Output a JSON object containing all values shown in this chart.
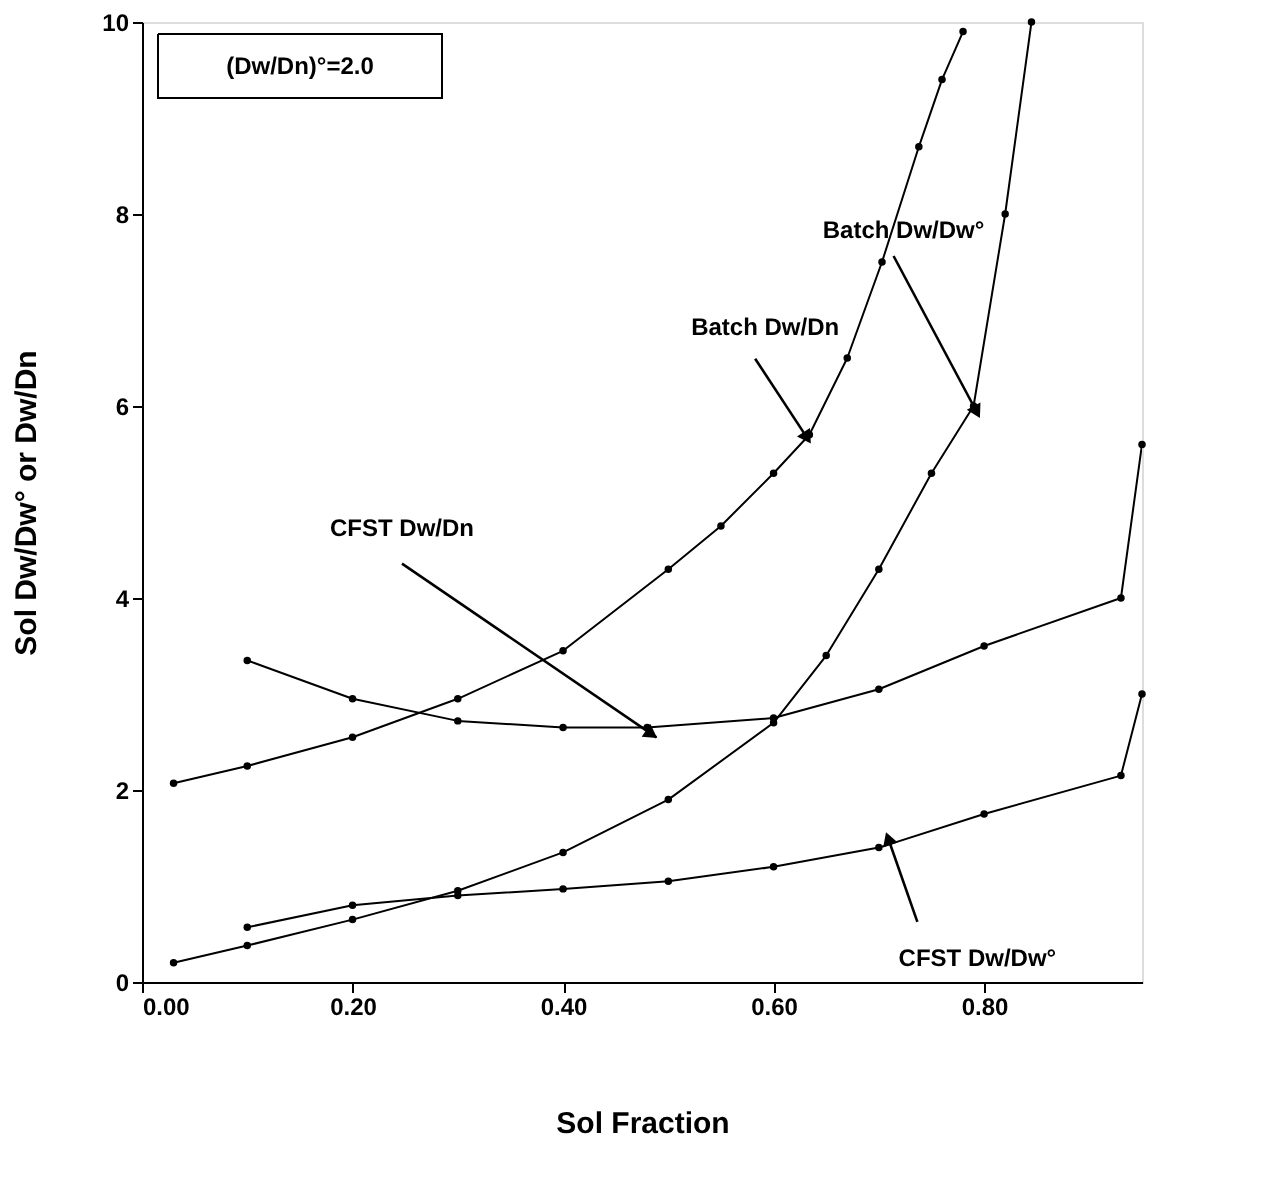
{
  "chart_data": {
    "type": "line",
    "xlabel": "Sol Fraction",
    "ylabel": "Sol Dw/Dw° or Dw/Dn",
    "xlim": [
      0,
      0.95
    ],
    "ylim": [
      0,
      10
    ],
    "xticks": [
      {
        "value": 0,
        "label": "0.00"
      },
      {
        "value": 0.2,
        "label": "0.20"
      },
      {
        "value": 0.4,
        "label": "0.40"
      },
      {
        "value": 0.6,
        "label": "0.60"
      },
      {
        "value": 0.8,
        "label": "0.80"
      }
    ],
    "yticks": [
      0,
      2,
      4,
      6,
      8,
      10
    ],
    "grid": false,
    "marker": "circle",
    "line_style": "solid",
    "series": [
      {
        "color": "#000000",
        "x": [
          0.03,
          0.1,
          0.2,
          0.3,
          0.4,
          0.5,
          0.55,
          0.6,
          0.634,
          0.67,
          0.703,
          0.738,
          0.76,
          0.78
        ],
        "values": [
          2.07,
          2.25,
          2.55,
          2.95,
          3.45,
          4.3,
          4.75,
          5.3,
          5.7,
          6.5,
          7.5,
          8.7,
          9.4,
          9.9
        ]
      },
      {
        "color": "#000000",
        "x": [
          0.03,
          0.1,
          0.2,
          0.3,
          0.4,
          0.5,
          0.6,
          0.65,
          0.7,
          0.75,
          0.79,
          0.82,
          0.845
        ],
        "values": [
          0.2,
          0.38,
          0.65,
          0.95,
          1.35,
          1.9,
          2.7,
          3.4,
          4.3,
          5.3,
          6.0,
          8.0,
          10.0
        ]
      },
      {
        "color": "#000000",
        "x": [
          0.1,
          0.2,
          0.3,
          0.4,
          0.48,
          0.6,
          0.7,
          0.8,
          0.93,
          0.95
        ],
        "values": [
          3.35,
          2.95,
          2.72,
          2.65,
          2.65,
          2.75,
          3.05,
          3.5,
          4.0,
          5.6
        ]
      },
      {
        "color": "#000000",
        "x": [
          0.1,
          0.2,
          0.3,
          0.4,
          0.5,
          0.6,
          0.7,
          0.8,
          0.93,
          0.95
        ],
        "values": [
          0.57,
          0.8,
          0.9,
          0.97,
          1.05,
          1.2,
          1.4,
          1.75,
          2.15,
          3.0
        ]
      }
    ],
    "annotations": [
      "(Dw/Dn)°=2.0",
      {
        "text": "Batch  Dw/Dw°",
        "x": 0.79,
        "y": 6.0
      },
      {
        "text": "Batch  Dw/Dn",
        "x": 0.63,
        "y": 5.7
      },
      {
        "text": "CFST  Dw/Dn",
        "x": 0.475,
        "y": 2.65
      },
      {
        "text": "CFST  Dw/Dw°",
        "x": 0.71,
        "y": 1.46
      }
    ]
  }
}
